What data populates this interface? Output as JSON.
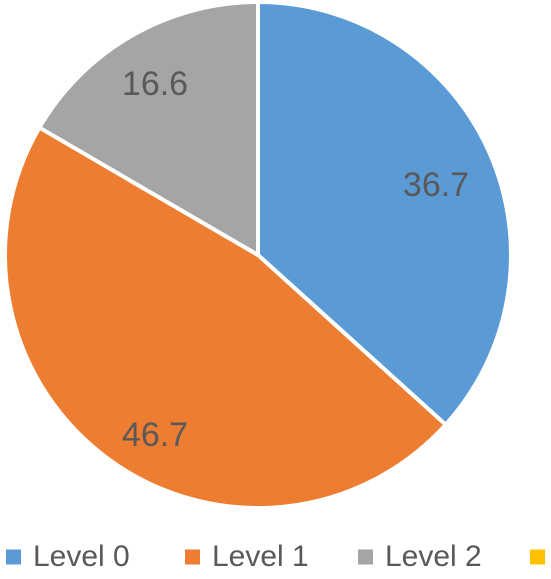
{
  "chart_data": {
    "type": "pie",
    "title": "",
    "series": [
      {
        "values": [
          36.7,
          46.7,
          16.6,
          0
        ]
      }
    ],
    "categories": [
      "Level 0",
      "Level 1",
      "Level 2",
      ""
    ],
    "slices": [
      {
        "label": "Level 0",
        "value": 36.7,
        "value_label": "36.7",
        "color": "#5B9BD5"
      },
      {
        "label": "Level 1",
        "value": 46.7,
        "value_label": "46.7",
        "color": "#ED7D31"
      },
      {
        "label": "Level 2",
        "value": 16.6,
        "value_label": "16.6",
        "color": "#A5A5A5"
      },
      {
        "label": "",
        "value": 0,
        "value_label": "",
        "color": "#FFC000"
      }
    ],
    "start_angle_deg": 0,
    "direction": "clockwise",
    "legend": {
      "placement": "bottom",
      "entries": [
        "Level 0",
        "Level 1",
        "Level 2",
        ""
      ]
    }
  }
}
